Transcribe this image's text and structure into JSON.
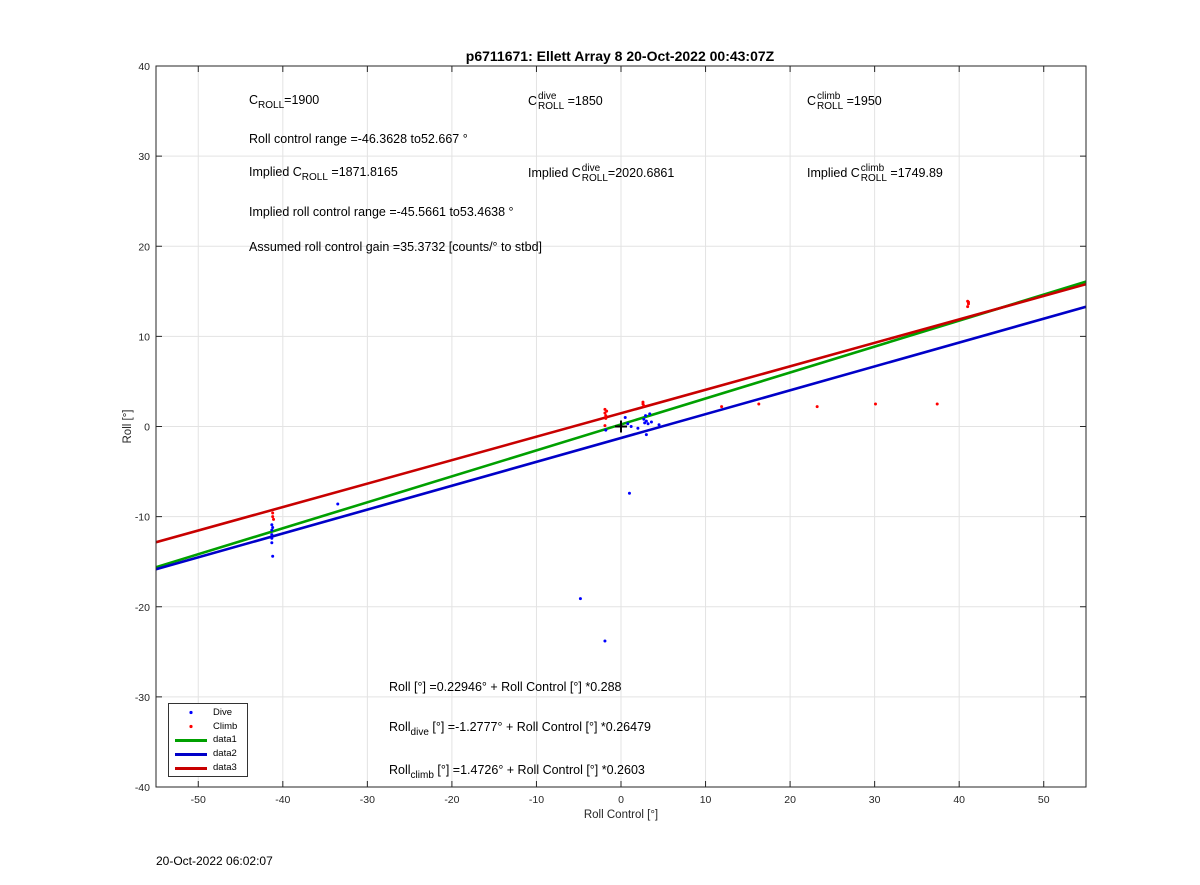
{
  "title": "p6711671: Ellett Array 8 20-Oct-2022 00:43:07Z",
  "footer_timestamp": "20-Oct-2022 06:02:07",
  "annotations": {
    "c_roll": {
      "pre": "C",
      "sub": "ROLL",
      "value": "=1900"
    },
    "c_roll_dive": {
      "pre": "C",
      "sup": "dive",
      "sub": "ROLL",
      "value": " =1850"
    },
    "c_roll_climb": {
      "pre": "C",
      "sup": "climb",
      "sub": "ROLL",
      "value": " =1950"
    },
    "roll_range": "Roll control range =-46.3628 to52.667 °",
    "implied_c_roll": {
      "pre": "Implied C",
      "sub": "ROLL",
      "value": " =1871.8165"
    },
    "implied_c_roll_dive": {
      "pre": "Implied C",
      "sup": "dive",
      "sub": "ROLL",
      "value": "=2020.6861"
    },
    "implied_c_roll_climb": {
      "pre": "Implied C",
      "sup": "climb",
      "sub": "ROLL",
      "value": " =1749.89"
    },
    "implied_range": "Implied roll control range =-45.5661 to53.4638 °",
    "gain": "Assumed roll control gain =35.3732 [counts/° to stbd]",
    "fit_all": "Roll [°] =0.22946° + Roll Control [°] *0.288",
    "fit_dive": {
      "pre": "Roll",
      "sub": "dive",
      "value": " [°] =-1.2777° + Roll Control [°] *0.26479"
    },
    "fit_climb": {
      "pre": "Roll",
      "sub": "climb",
      "value": " [°] =1.4726° + Roll Control [°] *0.2603"
    }
  },
  "chart_data": {
    "type": "scatter",
    "xlabel": "Roll Control [°]",
    "ylabel": "Roll [°]",
    "xlim": [
      -55,
      55
    ],
    "ylim": [
      -40,
      40
    ],
    "xticks": [
      -50,
      -40,
      -30,
      -20,
      -10,
      0,
      10,
      20,
      30,
      40,
      50
    ],
    "yticks": [
      -40,
      -30,
      -20,
      -10,
      0,
      10,
      20,
      30,
      40
    ],
    "grid": true,
    "legend_position": "bottom-left",
    "series": [
      {
        "name": "Dive",
        "kind": "points",
        "color": "#0000ff",
        "x": [
          -41.3,
          -41.3,
          -41.3,
          -41.3,
          -41.3,
          -41.2,
          -41.2,
          -33.5,
          -4.8,
          -1.9,
          -1.8,
          0.5,
          0.8,
          1.2,
          2.0,
          2.7,
          2.8,
          2.9,
          3.0,
          3.0,
          3.2,
          3.4,
          3.6,
          4.5,
          1.0
        ],
        "y": [
          -10.9,
          -11.5,
          -12.0,
          -12.4,
          -12.9,
          -11.2,
          -14.4,
          -8.6,
          -19.1,
          -23.8,
          -0.4,
          1.0,
          0.3,
          0.0,
          -0.2,
          0.8,
          0.4,
          1.2,
          -0.9,
          0.6,
          0.3,
          1.4,
          0.5,
          0.2,
          -7.4
        ]
      },
      {
        "name": "Climb",
        "kind": "points",
        "color": "#ff0000",
        "x": [
          -41.2,
          -41.2,
          -41.1,
          -1.9,
          -1.9,
          -1.8,
          -1.8,
          -1.7,
          -1.9,
          2.6,
          2.7,
          2.6,
          11.9,
          16.3,
          23.2,
          30.1,
          37.4,
          41.0,
          41.1,
          41.0,
          41.1
        ],
        "y": [
          -9.6,
          -10.0,
          -10.3,
          1.9,
          1.5,
          1.2,
          0.9,
          1.7,
          0.1,
          2.7,
          2.3,
          2.5,
          2.2,
          2.5,
          2.2,
          2.5,
          2.5,
          13.9,
          13.6,
          13.3,
          13.8
        ]
      },
      {
        "name": "data1",
        "kind": "line",
        "color": "#00a000",
        "intercept": 0.22946,
        "slope": 0.288
      },
      {
        "name": "data2",
        "kind": "line",
        "color": "#0000c8",
        "intercept": -1.2777,
        "slope": 0.26479
      },
      {
        "name": "data3",
        "kind": "line",
        "color": "#c80000",
        "intercept": 1.4726,
        "slope": 0.2603
      }
    ],
    "marker": {
      "x": 0,
      "y": 0
    }
  }
}
